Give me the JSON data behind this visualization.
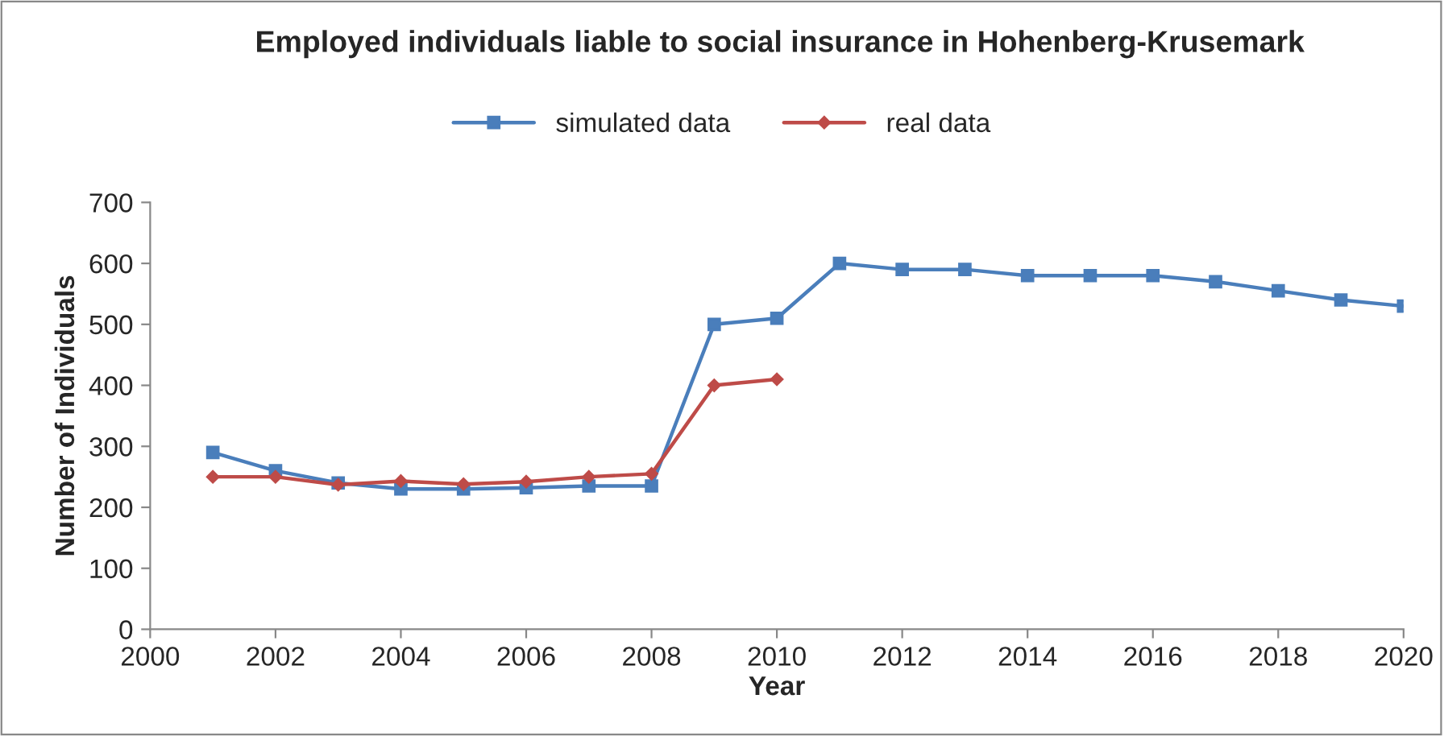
{
  "chart_data": {
    "type": "line",
    "title": "Employed individuals liable to social insurance in Hohenberg-Krusemark",
    "xlabel": "Year",
    "ylabel": "Number of Individuals",
    "x": [
      2001,
      2002,
      2003,
      2004,
      2005,
      2006,
      2007,
      2008,
      2009,
      2010,
      2011,
      2012,
      2013,
      2014,
      2015,
      2016,
      2017,
      2018,
      2019,
      2020
    ],
    "series": [
      {
        "name": "simulated data",
        "color": "#4a7ebb",
        "marker": "square",
        "values": [
          290,
          260,
          240,
          230,
          230,
          232,
          235,
          235,
          500,
          510,
          600,
          590,
          590,
          580,
          580,
          580,
          570,
          555,
          540,
          530
        ]
      },
      {
        "name": "real data",
        "color": "#be4b48",
        "marker": "diamond",
        "values": [
          250,
          250,
          237,
          243,
          238,
          242,
          250,
          255,
          400,
          410,
          null,
          null,
          null,
          null,
          null,
          null,
          null,
          null,
          null,
          null
        ]
      }
    ],
    "xlim": [
      2000,
      2020
    ],
    "xticks": [
      2000,
      2002,
      2004,
      2006,
      2008,
      2010,
      2012,
      2014,
      2016,
      2018,
      2020
    ],
    "ylim": [
      0,
      700
    ],
    "yticks": [
      0,
      100,
      200,
      300,
      400,
      500,
      600,
      700
    ],
    "grid": false,
    "legend": "top",
    "line_style": "solid"
  }
}
